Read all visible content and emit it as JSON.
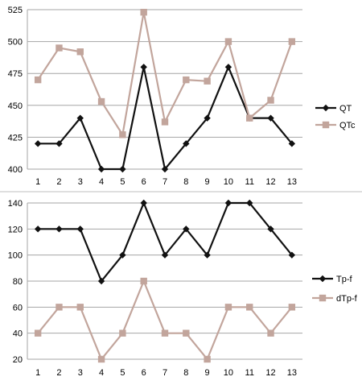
{
  "chart_data": [
    {
      "type": "line",
      "title": "",
      "xlabel": "",
      "ylabel": "",
      "x": [
        1,
        2,
        3,
        4,
        5,
        6,
        7,
        8,
        9,
        10,
        11,
        12,
        13
      ],
      "ylim": [
        400,
        525
      ],
      "yticks": [
        400,
        425,
        450,
        475,
        500,
        525
      ],
      "grid": true,
      "legend_position": "right",
      "series": [
        {
          "name": "QT",
          "color": "#111111",
          "marker": "diamond",
          "values": [
            420,
            420,
            440,
            400,
            400,
            480,
            400,
            420,
            440,
            480,
            440,
            440,
            420
          ]
        },
        {
          "name": "QTc",
          "color": "#c2a59c",
          "marker": "square",
          "values": [
            470,
            495,
            492,
            453,
            427,
            523,
            437,
            470,
            469,
            500,
            440,
            454,
            500
          ]
        }
      ]
    },
    {
      "type": "line",
      "title": "",
      "xlabel": "",
      "ylabel": "",
      "x": [
        1,
        2,
        3,
        4,
        5,
        6,
        7,
        8,
        9,
        10,
        11,
        12,
        13
      ],
      "ylim": [
        20,
        140
      ],
      "yticks": [
        20,
        40,
        60,
        80,
        100,
        120,
        140
      ],
      "grid": true,
      "legend_position": "right",
      "series": [
        {
          "name": "Tp-f",
          "color": "#111111",
          "marker": "diamond",
          "values": [
            120,
            120,
            120,
            80,
            100,
            140,
            100,
            120,
            100,
            140,
            140,
            120,
            100
          ]
        },
        {
          "name": "dTp-f",
          "color": "#c2a59c",
          "marker": "square",
          "values": [
            40,
            60,
            60,
            20,
            40,
            80,
            40,
            40,
            20,
            60,
            60,
            40,
            60
          ]
        }
      ]
    }
  ]
}
